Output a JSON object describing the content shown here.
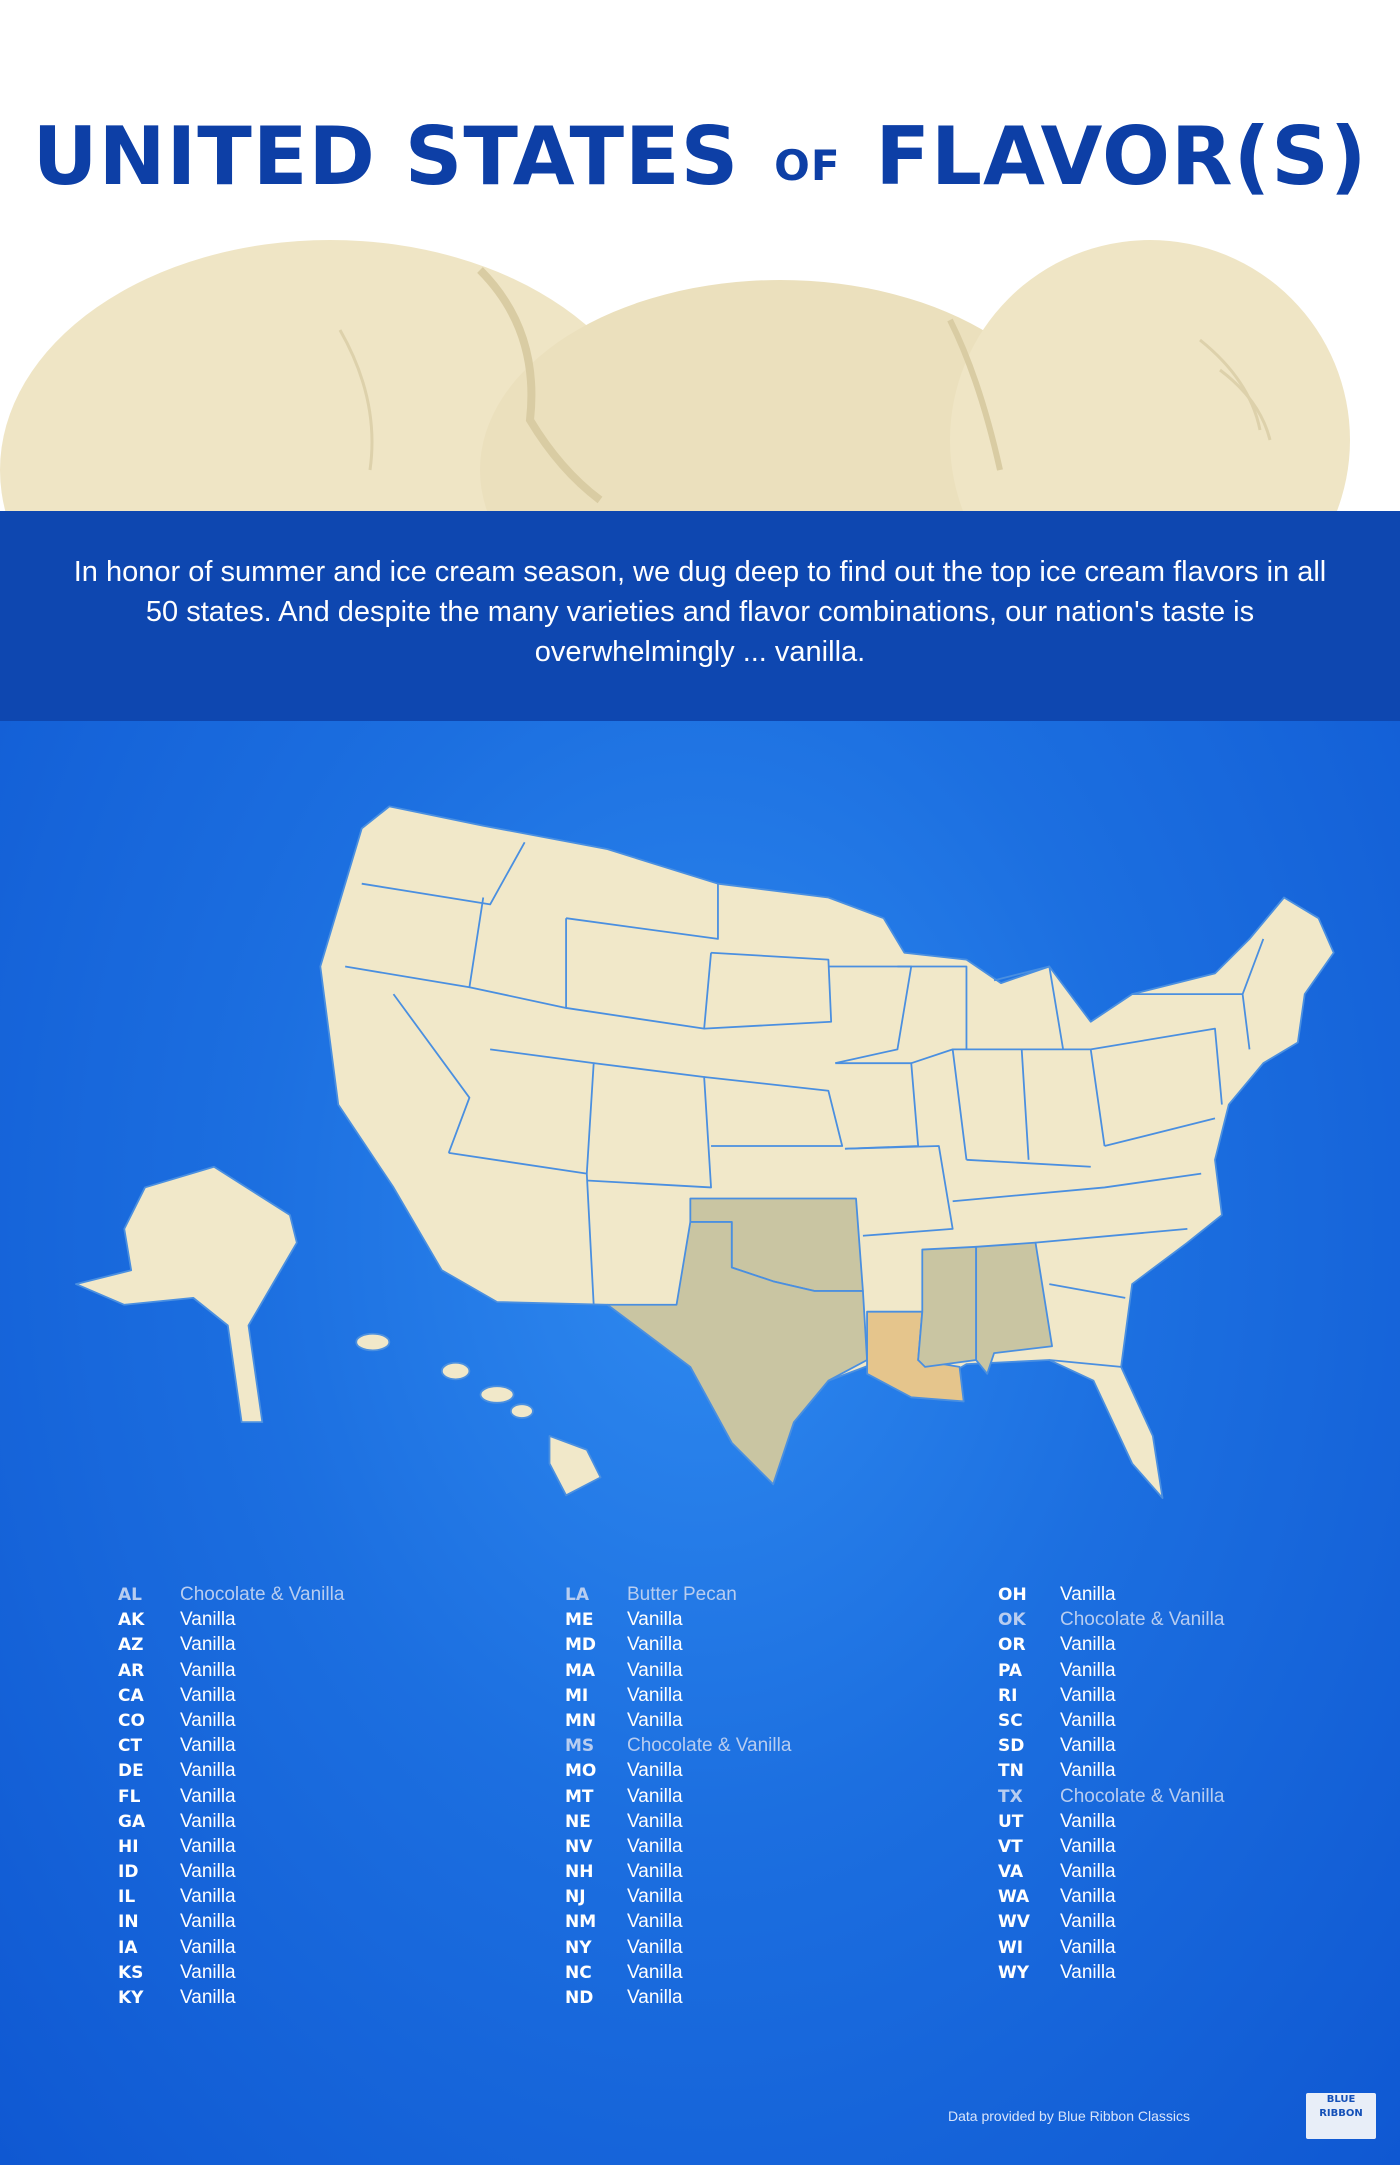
{
  "title": {
    "part1": "UNITED STATES",
    "part2": "OF",
    "part3": "FLAVOR(S)"
  },
  "intro": "In honor of summer and ice cream season, we dug deep to find out the top ice cream flavors in all 50 states. And despite the many varieties and flavor combinations, our nation's taste is overwhelmingly ... vanilla.",
  "colors": {
    "title": "#0d3fa6",
    "band": "#0e47b0",
    "background": "#1c6fe0",
    "vanilla_state": "#f1e8c9",
    "chocolate_vanilla_state": "#c9c5a2",
    "butter_pecan_state": "#e5c58c",
    "scoop": "#efe5c5"
  },
  "map_highlights": {
    "chocolate_vanilla": [
      "AL",
      "MS",
      "OK",
      "TX"
    ],
    "butter_pecan": [
      "LA"
    ]
  },
  "columns": [
    [
      {
        "abbr": "AL",
        "flavor": "Chocolate & Vanilla"
      },
      {
        "abbr": "AK",
        "flavor": "Vanilla"
      },
      {
        "abbr": "AZ",
        "flavor": "Vanilla"
      },
      {
        "abbr": "AR",
        "flavor": "Vanilla"
      },
      {
        "abbr": "CA",
        "flavor": "Vanilla"
      },
      {
        "abbr": "CO",
        "flavor": "Vanilla"
      },
      {
        "abbr": "CT",
        "flavor": "Vanilla"
      },
      {
        "abbr": "DE",
        "flavor": "Vanilla"
      },
      {
        "abbr": "FL",
        "flavor": "Vanilla"
      },
      {
        "abbr": "GA",
        "flavor": "Vanilla"
      },
      {
        "abbr": "HI",
        "flavor": "Vanilla"
      },
      {
        "abbr": "ID",
        "flavor": "Vanilla"
      },
      {
        "abbr": "IL",
        "flavor": "Vanilla"
      },
      {
        "abbr": "IN",
        "flavor": "Vanilla"
      },
      {
        "abbr": "IA",
        "flavor": "Vanilla"
      },
      {
        "abbr": "KS",
        "flavor": "Vanilla"
      },
      {
        "abbr": "KY",
        "flavor": "Vanilla"
      }
    ],
    [
      {
        "abbr": "LA",
        "flavor": "Butter Pecan"
      },
      {
        "abbr": "ME",
        "flavor": "Vanilla"
      },
      {
        "abbr": "MD",
        "flavor": "Vanilla"
      },
      {
        "abbr": "MA",
        "flavor": "Vanilla"
      },
      {
        "abbr": "MI",
        "flavor": "Vanilla"
      },
      {
        "abbr": "MN",
        "flavor": "Vanilla"
      },
      {
        "abbr": "MS",
        "flavor": "Chocolate & Vanilla"
      },
      {
        "abbr": "MO",
        "flavor": "Vanilla"
      },
      {
        "abbr": "MT",
        "flavor": "Vanilla"
      },
      {
        "abbr": "NE",
        "flavor": "Vanilla"
      },
      {
        "abbr": "NV",
        "flavor": "Vanilla"
      },
      {
        "abbr": "NH",
        "flavor": "Vanilla"
      },
      {
        "abbr": "NJ",
        "flavor": "Vanilla"
      },
      {
        "abbr": "NM",
        "flavor": "Vanilla"
      },
      {
        "abbr": "NY",
        "flavor": "Vanilla"
      },
      {
        "abbr": "NC",
        "flavor": "Vanilla"
      },
      {
        "abbr": "ND",
        "flavor": "Vanilla"
      }
    ],
    [
      {
        "abbr": "OH",
        "flavor": "Vanilla"
      },
      {
        "abbr": "OK",
        "flavor": "Chocolate & Vanilla"
      },
      {
        "abbr": "OR",
        "flavor": "Vanilla"
      },
      {
        "abbr": "PA",
        "flavor": "Vanilla"
      },
      {
        "abbr": "RI",
        "flavor": "Vanilla"
      },
      {
        "abbr": "SC",
        "flavor": "Vanilla"
      },
      {
        "abbr": "SD",
        "flavor": "Vanilla"
      },
      {
        "abbr": "TN",
        "flavor": "Vanilla"
      },
      {
        "abbr": "TX",
        "flavor": "Chocolate & Vanilla"
      },
      {
        "abbr": "UT",
        "flavor": "Vanilla"
      },
      {
        "abbr": "VT",
        "flavor": "Vanilla"
      },
      {
        "abbr": "VA",
        "flavor": "Vanilla"
      },
      {
        "abbr": "WA",
        "flavor": "Vanilla"
      },
      {
        "abbr": "WV",
        "flavor": "Vanilla"
      },
      {
        "abbr": "WI",
        "flavor": "Vanilla"
      },
      {
        "abbr": "WY",
        "flavor": "Vanilla"
      }
    ]
  ],
  "footer": "Data provided by Blue Ribbon Classics",
  "logo": "BLUE RIBBON"
}
